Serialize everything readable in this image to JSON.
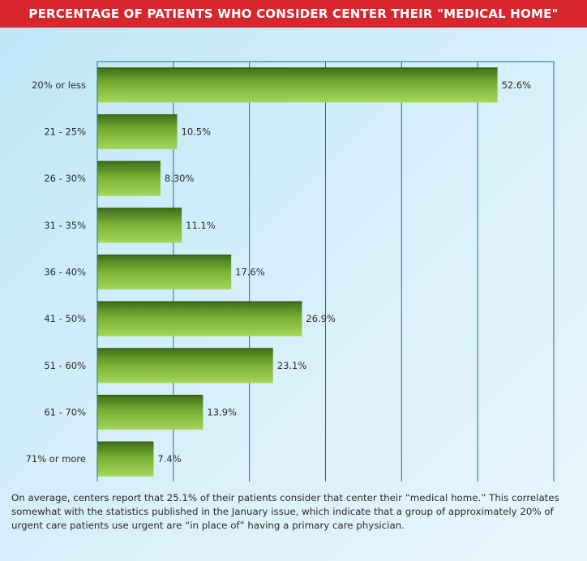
{
  "title": "PERCENTAGE OF PATIENTS WHO CONSIDER CENTER THEIR \"MEDICAL HOME\"",
  "caption": "On average, centers report that 25.1% of their patients consider that center their “medical home.” This correlates somewhat with the statistics published in the January issue, which indicate that a group of approximately 20% of urgent care patients use urgent are “in place of” having a primary care physician.",
  "colors": {
    "title_bar": "#d8262e",
    "bar_dark": "#3f6d17",
    "bar_light": "#9ccf4f",
    "axis": "#1c6f86",
    "grid": "#1c6f86"
  },
  "chart_data": {
    "type": "bar",
    "orientation": "horizontal",
    "categories": [
      "20% or less",
      "21 - 25%",
      "26 - 30%",
      "31 - 35%",
      "36 - 40%",
      "41 - 50%",
      "51 - 60%",
      "61 - 70%",
      "71% or more"
    ],
    "values": [
      52.6,
      10.5,
      8.3,
      11.1,
      17.6,
      26.9,
      23.1,
      13.9,
      7.4
    ],
    "value_labels": [
      "52.6%",
      "10.5%",
      "8.30%",
      "11.1%",
      "17.6%",
      "26.9%",
      "23.1%",
      "13.9%",
      "7.4%"
    ],
    "xlim": [
      0,
      60
    ],
    "xticks": [
      0,
      10,
      20,
      30,
      40,
      50,
      60
    ],
    "grid": true,
    "legend": "none",
    "xlabel": "",
    "ylabel": ""
  }
}
